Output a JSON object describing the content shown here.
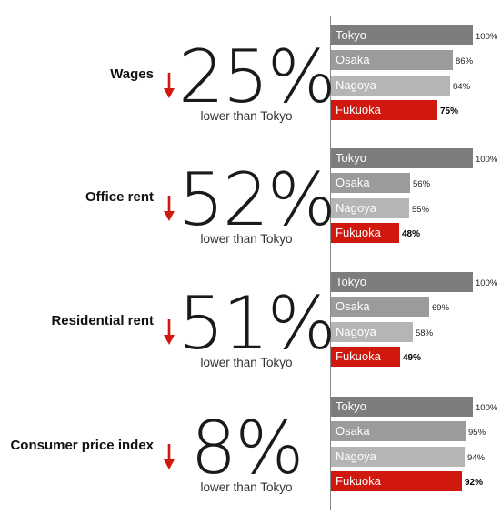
{
  "colors": {
    "tokyo": "#7d7d7d",
    "osaka": "#9b9b9b",
    "nagoya": "#b5b5b5",
    "fukuoka": "#d0180f",
    "arrow": "#d0180f"
  },
  "chart_data": {
    "type": "bar",
    "orientation": "horizontal",
    "unit": "%",
    "xlim": [
      0,
      100
    ],
    "grid": false,
    "categories": [
      "Tokyo",
      "Osaka",
      "Nagoya",
      "Fukuoka"
    ],
    "groups": [
      {
        "label": "Wages",
        "headline": "25%",
        "headline_text": "lower than Tokyo",
        "values": [
          100,
          86,
          84,
          75
        ],
        "value_labels": [
          "100%",
          "86%",
          "84%",
          "75%"
        ]
      },
      {
        "label": "Office rent",
        "headline": "52%",
        "headline_text": "lower than Tokyo",
        "values": [
          100,
          56,
          55,
          48
        ],
        "value_labels": [
          "100%",
          "56%",
          "55%",
          "48%"
        ]
      },
      {
        "label": "Residential rent",
        "headline": "51%",
        "headline_text": "lower than Tokyo",
        "values": [
          100,
          69,
          58,
          49
        ],
        "value_labels": [
          "100%",
          "69%",
          "58%",
          "49%"
        ]
      },
      {
        "label": "Consumer price index",
        "headline": "8%",
        "headline_text": "lower than Tokyo",
        "values": [
          100,
          95,
          94,
          92
        ],
        "value_labels": [
          "100%",
          "95%",
          "94%",
          "92%"
        ]
      }
    ]
  }
}
